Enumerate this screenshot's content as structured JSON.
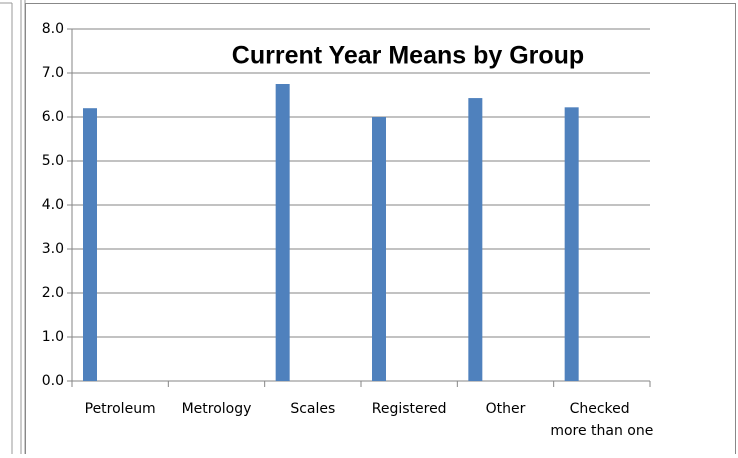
{
  "chart_data": {
    "type": "bar",
    "title": "Current Year Means by Group",
    "categories": [
      "Petroleum",
      "Metrology",
      "Scales",
      "Registered",
      "Other",
      "Checked more than one"
    ],
    "values": [
      6.2,
      null,
      6.75,
      6.0,
      6.43,
      6.22
    ],
    "color": "#4f81bd",
    "ylim": [
      0,
      8
    ],
    "yticks": [
      {
        "value": 0,
        "label": "0.0"
      },
      {
        "value": 1,
        "label": "1.0"
      },
      {
        "value": 2,
        "label": "2.0"
      },
      {
        "value": 3,
        "label": "3.0"
      },
      {
        "value": 4,
        "label": "4.0"
      },
      {
        "value": 5,
        "label": "5.0"
      },
      {
        "value": 6,
        "label": "6.0"
      },
      {
        "value": 7,
        "label": "7.0"
      },
      {
        "value": 8,
        "label": "8.0"
      }
    ],
    "grid": true
  }
}
